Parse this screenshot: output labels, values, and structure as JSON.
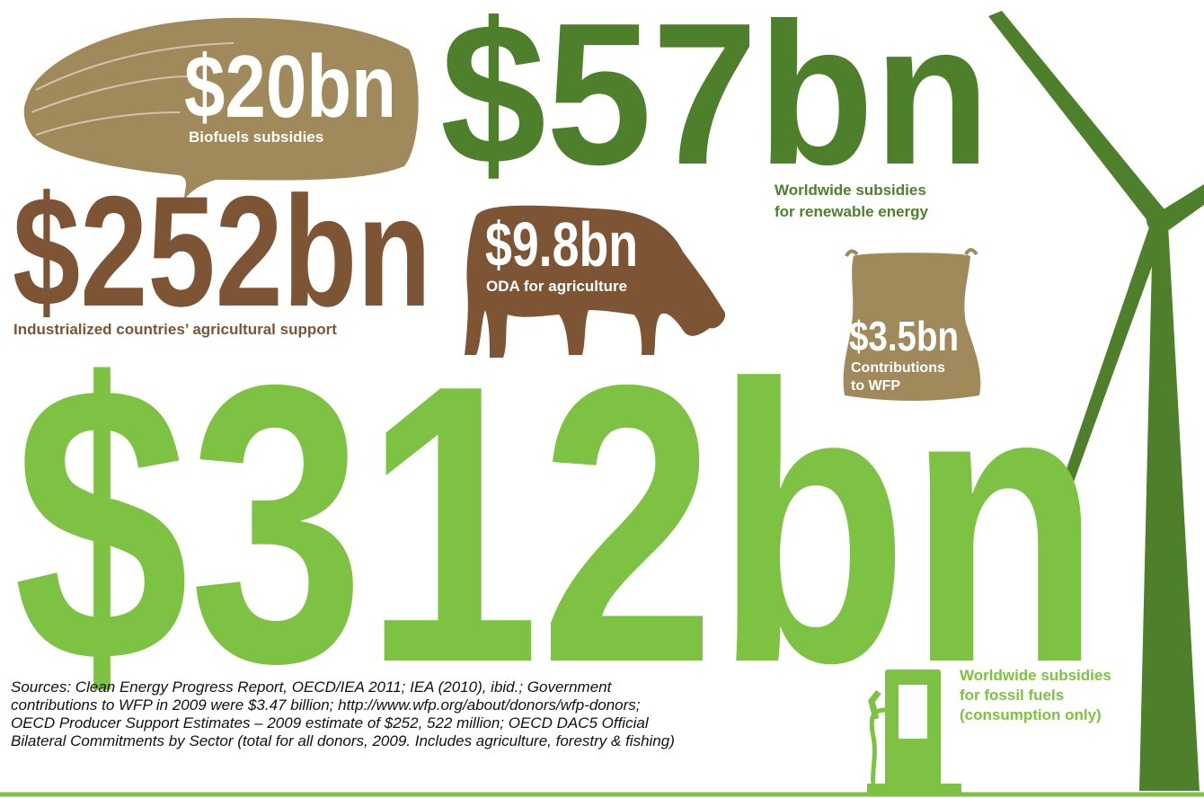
{
  "biofuels": {
    "amount": "$20bn",
    "label": "Biofuels subsidies"
  },
  "renewables": {
    "amount": "$57bn",
    "label_lines": [
      "Worldwide subsidies",
      "for renewable energy"
    ]
  },
  "agriculture_support": {
    "amount": "$252bn",
    "label": "Industrialized countries’ agricultural support"
  },
  "oda": {
    "amount": "$9.8bn",
    "label": "ODA for agriculture"
  },
  "wfp": {
    "amount": "$3.5bn",
    "label_lines": [
      "Contributions",
      "to WFP"
    ]
  },
  "fossil": {
    "amount": "$312bn",
    "label_lines": [
      "Worldwide subsidies",
      "for fossil fuels",
      "(consumption only)"
    ]
  },
  "sources": [
    "Sources: Clean Energy Progress Report, OECD/IEA 2011; IEA (2010), ibid.; Government",
    "contributions to WFP in 2009 were $3.47 billion; http://www.wfp.org/about/donors/wfp-donors;",
    "OECD Producer Support Estimates – 2009 estimate of $252, 522 million; OECD DAC5 Official",
    "Bilateral Commitments by Sector (total for all donors, 2009. Includes agriculture, forestry & fishing)"
  ]
}
